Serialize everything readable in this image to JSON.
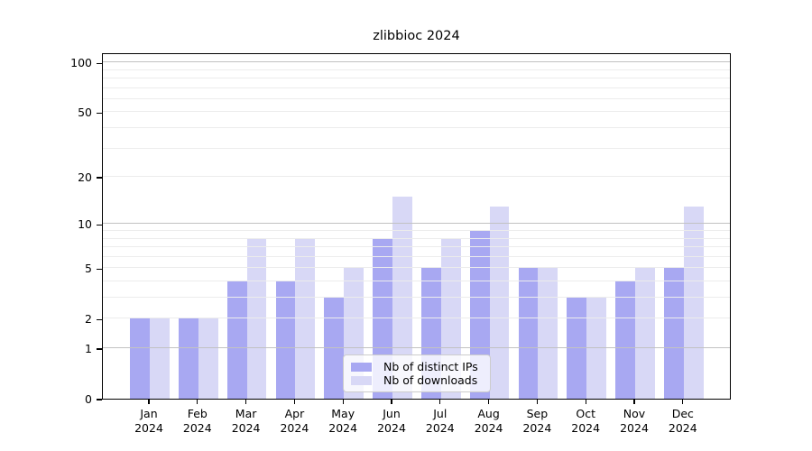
{
  "title": "zlibbioc 2024",
  "chart_data": {
    "type": "bar",
    "title": "zlibbioc 2024",
    "year_label": "2024",
    "categories": [
      "Jan",
      "Feb",
      "Mar",
      "Apr",
      "May",
      "Jun",
      "Jul",
      "Aug",
      "Sep",
      "Oct",
      "Nov",
      "Dec"
    ],
    "series": [
      {
        "name": "Nb of distinct IPs",
        "color": "#a8a8f2",
        "values": [
          2,
          2,
          4,
          4,
          3,
          8,
          5,
          9,
          5,
          3,
          4,
          5
        ]
      },
      {
        "name": "Nb of downloads",
        "color": "#d8d8f6",
        "values": [
          2,
          2,
          8,
          8,
          5,
          15,
          8,
          13,
          5,
          3,
          5,
          13
        ]
      }
    ],
    "yscale": "log10(1+x)",
    "ylim": [
      0,
      115
    ],
    "yticks": {
      "labels": [
        "100",
        "50",
        "20",
        "10",
        "5",
        "2",
        "1",
        "0"
      ],
      "values": [
        100,
        50,
        20,
        10,
        5,
        2,
        1,
        0
      ]
    },
    "major_gridlines": [
      1,
      10,
      100
    ],
    "minor_gridlines": [
      2,
      3,
      4,
      5,
      6,
      7,
      8,
      9,
      20,
      30,
      40,
      50,
      60,
      70,
      80,
      90
    ],
    "grid": "on",
    "legend_position": "lower center",
    "xlabel": "",
    "ylabel": ""
  },
  "legend": {
    "items": [
      {
        "label": "Nb of distinct IPs",
        "color": "#a8a8f2"
      },
      {
        "label": "Nb of downloads",
        "color": "#d8d8f6"
      }
    ]
  },
  "colors": {
    "bar_dark": "#a8a8f2",
    "bar_light": "#d8d8f6",
    "grid_minor": "#ececec",
    "grid_major": "#c2c2c2",
    "axis": "#000000",
    "legend_border": "#cccccc"
  }
}
